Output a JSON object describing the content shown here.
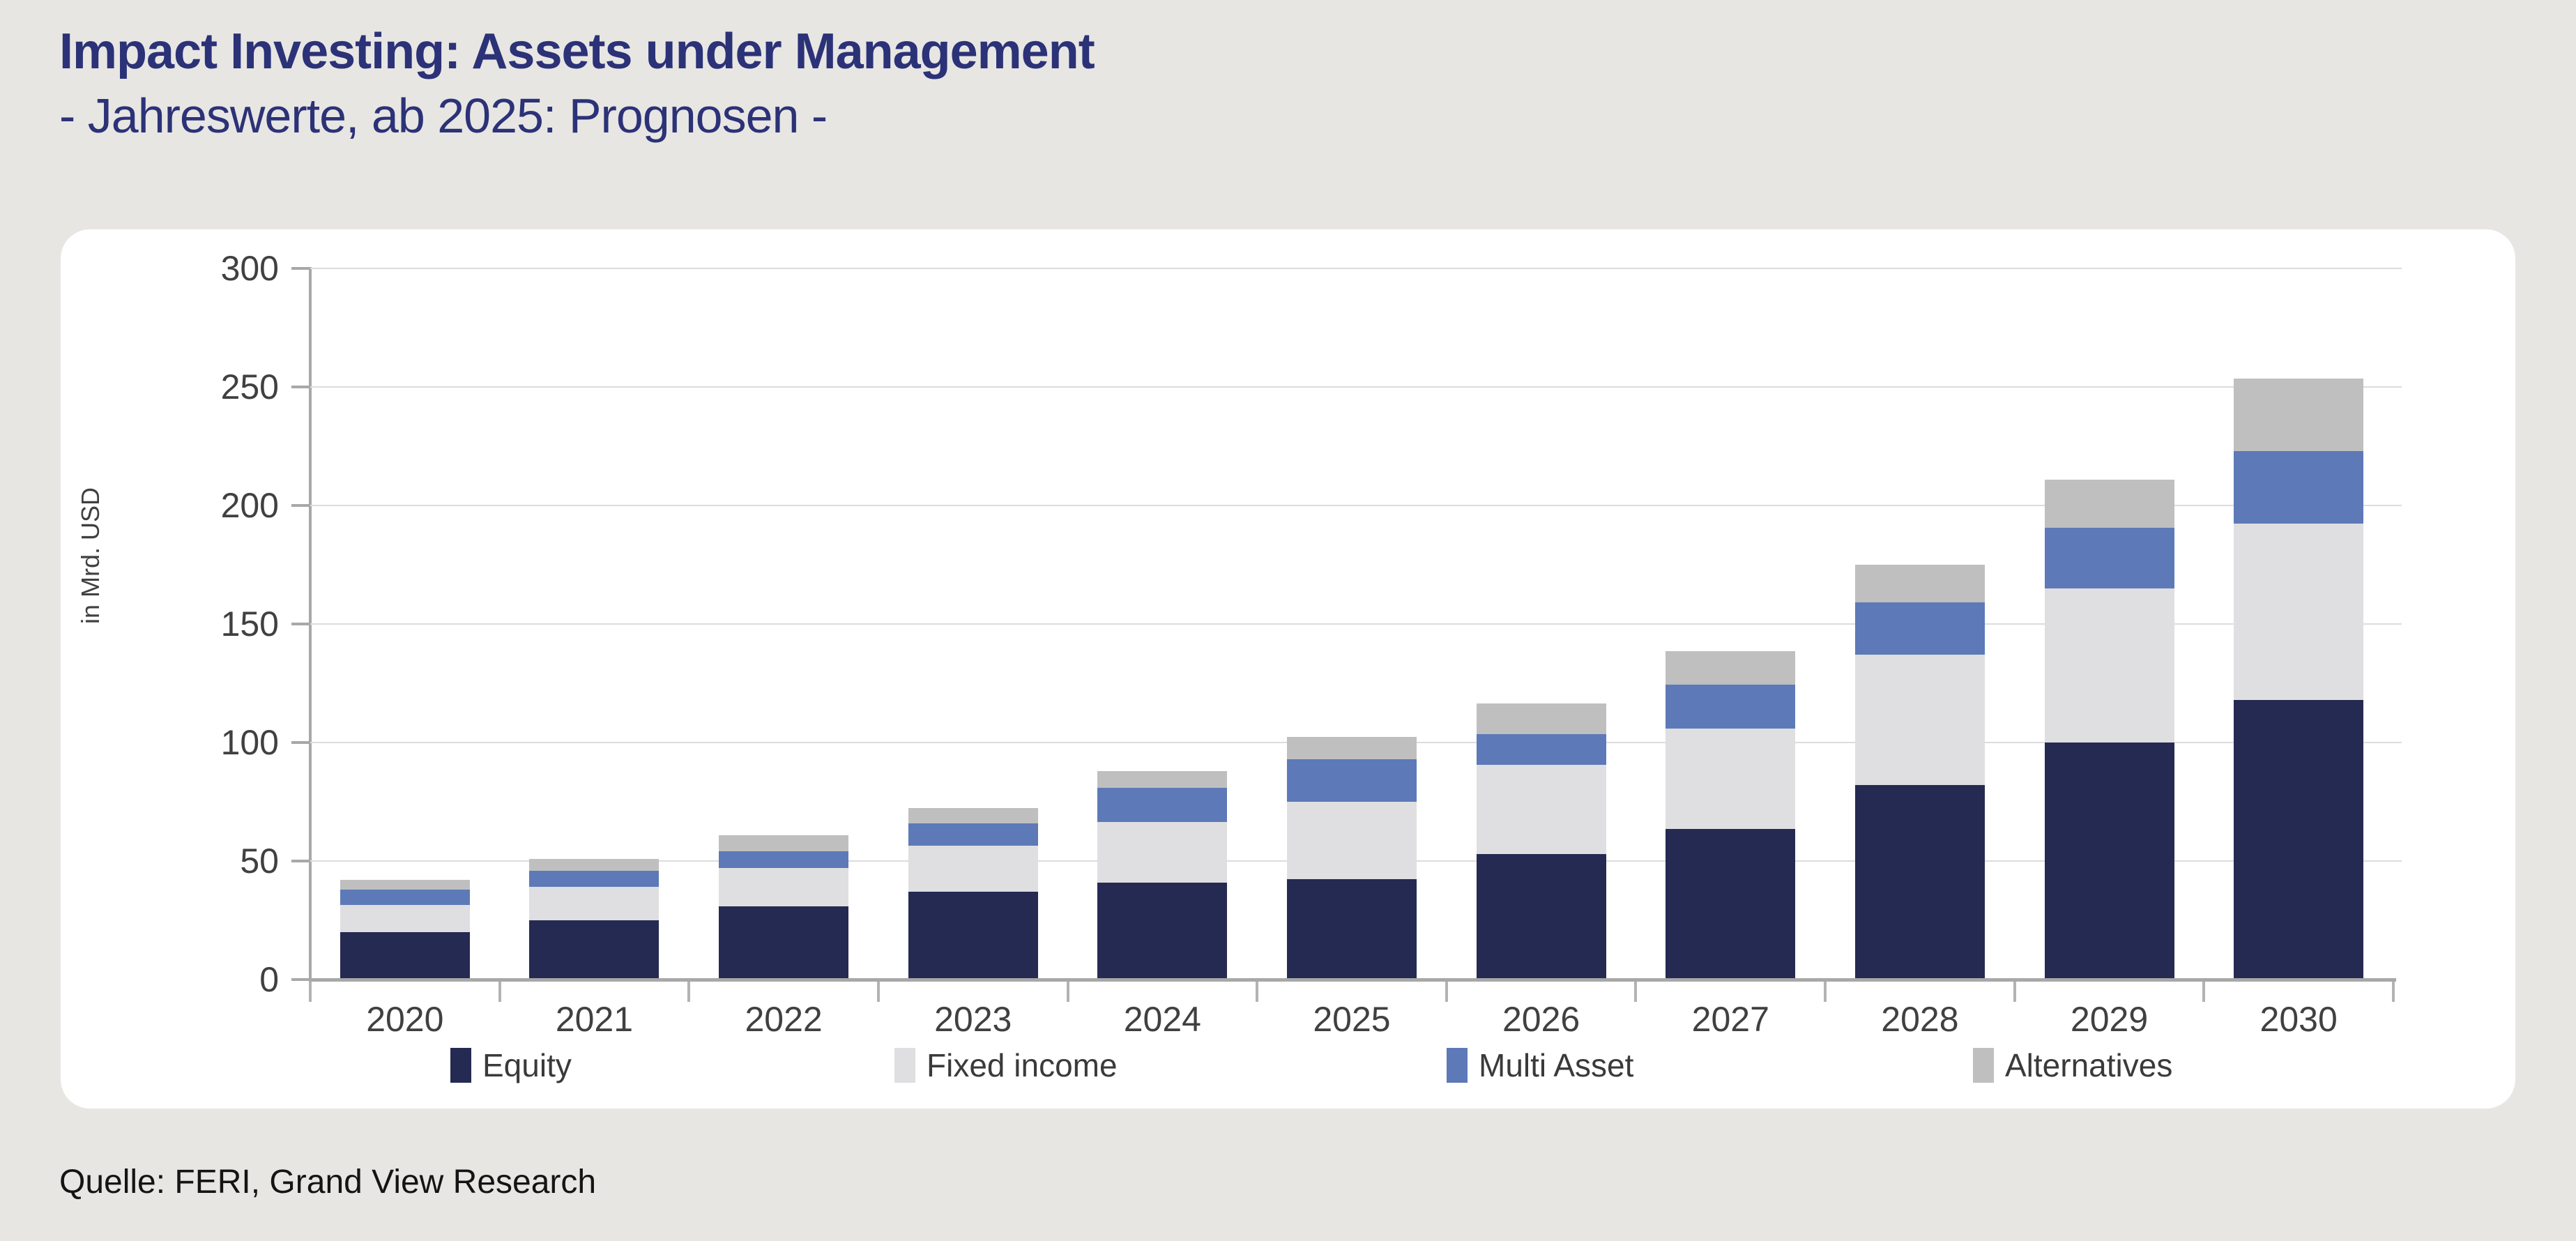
{
  "header": {
    "title_line1": "Impact Investing: Assets under Management",
    "title_line2": "- Jahreswerte, ab 2025: Prognosen -"
  },
  "footer": {
    "source": "Quelle: FERI, Grand View Research"
  },
  "colors": {
    "page_background": "#e8e6e3",
    "card_background": "#ffffff",
    "title_text": "#2b3277",
    "axis_text": "#404040",
    "axis_line": "#a8a8a8",
    "gridline": "#dcdcdc",
    "equity": "#252a52",
    "fixed_income": "#dfdfe1",
    "multi_asset": "#5d79b8",
    "alternatives": "#bfbfbf"
  },
  "chart_data": {
    "type": "bar",
    "stacked": true,
    "title": "Impact Investing: Assets under Management - Jahreswerte, ab 2025: Prognosen -",
    "xlabel": "",
    "ylabel": "in Mrd. USD",
    "ylim": [
      0,
      300
    ],
    "yticks": [
      0,
      50,
      100,
      150,
      200,
      250,
      300
    ],
    "grid": true,
    "legend_position": "bottom",
    "categories": [
      "2020",
      "2021",
      "2022",
      "2023",
      "2024",
      "2025",
      "2026",
      "2027",
      "2028",
      "2029",
      "2030"
    ],
    "series": [
      {
        "name": "Equity",
        "color": "#252a52",
        "values": [
          20,
          25,
          31,
          37,
          41,
          42.5,
          53,
          63.5,
          82,
          100,
          118
        ]
      },
      {
        "name": "Fixed income",
        "color": "#dfdfe1",
        "values": [
          11.5,
          14,
          16,
          19.5,
          25.5,
          32.5,
          37.5,
          42.5,
          55,
          65,
          74.5
        ]
      },
      {
        "name": "Multi Asset",
        "color": "#5d79b8",
        "values": [
          6.5,
          7,
          7,
          9.5,
          14.5,
          18,
          13,
          18.5,
          22,
          25.5,
          30.5
        ]
      },
      {
        "name": "Alternatives",
        "color": "#bfbfbf",
        "values": [
          4,
          5,
          7,
          6.5,
          7,
          9.5,
          13,
          14,
          16,
          20.5,
          30.5
        ]
      }
    ],
    "totals": [
      42,
      51,
      61,
      72.5,
      88,
      102.5,
      116.5,
      138.5,
      175,
      211,
      253.5
    ]
  }
}
